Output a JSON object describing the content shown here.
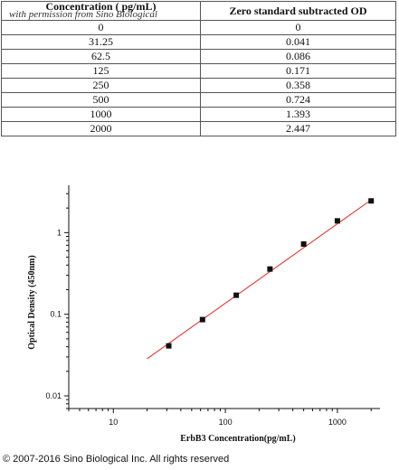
{
  "table": {
    "watermark": "with permission from Sino Biological",
    "headers": [
      "Concentration ( pg/mL)",
      "Zero standard subtracted OD"
    ],
    "rows": [
      [
        "0",
        "0"
      ],
      [
        "31.25",
        "0.041"
      ],
      [
        "62.5",
        "0.086"
      ],
      [
        "125",
        "0.171"
      ],
      [
        "250",
        "0.358"
      ],
      [
        "500",
        "0.724"
      ],
      [
        "1000",
        "1.393"
      ],
      [
        "2000",
        "2.447"
      ]
    ]
  },
  "chart_data": {
    "type": "scatter",
    "xlabel": "ErbB3  Concentration(pg/mL)",
    "ylabel": "Optical Density (450nm)",
    "x_scale": "log",
    "y_scale": "log",
    "xlim": [
      4,
      2400
    ],
    "ylim": [
      0.007,
      3.8
    ],
    "x_ticks": [
      10,
      100,
      1000
    ],
    "x_tick_labels": [
      "10",
      "100",
      "1000"
    ],
    "y_ticks": [
      0.01,
      0.1,
      1
    ],
    "y_tick_labels": [
      "0.01",
      "0.1",
      "1"
    ],
    "grid": false,
    "points": {
      "x": [
        31.25,
        62.5,
        125,
        250,
        500,
        1000,
        2000
      ],
      "y": [
        0.041,
        0.086,
        0.171,
        0.358,
        0.724,
        1.393,
        2.447
      ]
    },
    "fit_line": {
      "x": [
        20,
        2000
      ],
      "y": [
        0.0285,
        2.52
      ]
    },
    "colors": {
      "points": "#111111",
      "fit_line": "#e8281e",
      "axes": "#111111"
    }
  },
  "footer": "© 2007-2016 Sino Biological Inc. All rights reserved"
}
